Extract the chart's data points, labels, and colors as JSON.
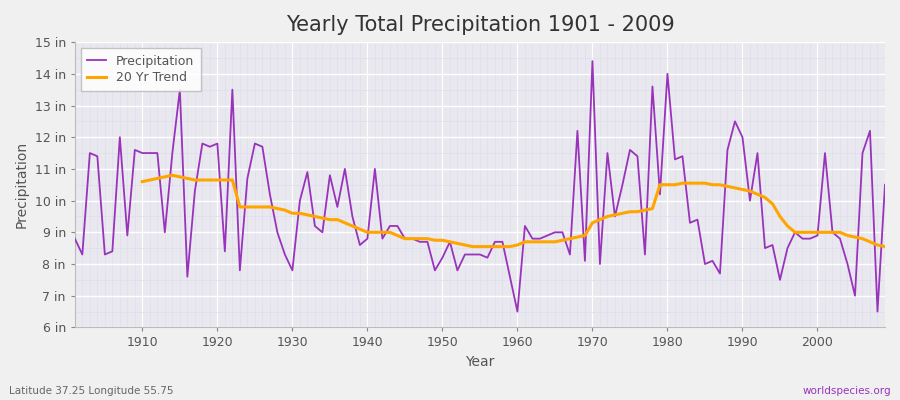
{
  "title": "Yearly Total Precipitation 1901 - 2009",
  "xlabel": "Year",
  "ylabel": "Precipitation",
  "footnote_left": "Latitude 37.25 Longitude 55.75",
  "footnote_right": "worldspecies.org",
  "years": [
    1901,
    1902,
    1903,
    1904,
    1905,
    1906,
    1907,
    1908,
    1909,
    1910,
    1911,
    1912,
    1913,
    1914,
    1915,
    1916,
    1917,
    1918,
    1919,
    1920,
    1921,
    1922,
    1923,
    1924,
    1925,
    1926,
    1927,
    1928,
    1929,
    1930,
    1931,
    1932,
    1933,
    1934,
    1935,
    1936,
    1937,
    1938,
    1939,
    1940,
    1941,
    1942,
    1943,
    1944,
    1945,
    1946,
    1947,
    1948,
    1949,
    1950,
    1951,
    1952,
    1953,
    1954,
    1955,
    1956,
    1957,
    1958,
    1959,
    1960,
    1961,
    1962,
    1963,
    1964,
    1965,
    1966,
    1967,
    1968,
    1969,
    1970,
    1971,
    1972,
    1973,
    1974,
    1975,
    1976,
    1977,
    1978,
    1979,
    1980,
    1981,
    1982,
    1983,
    1984,
    1985,
    1986,
    1987,
    1988,
    1989,
    1990,
    1991,
    1992,
    1993,
    1994,
    1995,
    1996,
    1997,
    1998,
    1999,
    2000,
    2001,
    2002,
    2003,
    2004,
    2005,
    2006,
    2007,
    2008,
    2009
  ],
  "precip_in": [
    8.8,
    8.3,
    11.5,
    11.4,
    8.3,
    8.4,
    12.0,
    8.9,
    11.6,
    11.5,
    11.5,
    11.5,
    9.0,
    11.5,
    13.5,
    7.6,
    10.3,
    11.8,
    11.7,
    11.8,
    8.4,
    13.5,
    7.8,
    10.7,
    11.8,
    11.7,
    10.2,
    9.0,
    8.3,
    7.8,
    10.0,
    10.9,
    9.2,
    9.0,
    10.8,
    9.8,
    11.0,
    9.5,
    8.6,
    8.8,
    11.0,
    8.8,
    9.2,
    9.2,
    8.8,
    8.8,
    8.7,
    8.7,
    7.8,
    8.2,
    8.7,
    7.8,
    8.3,
    8.3,
    8.3,
    8.2,
    8.7,
    8.7,
    7.6,
    6.5,
    9.2,
    8.8,
    8.8,
    8.9,
    9.0,
    9.0,
    8.3,
    12.2,
    8.1,
    14.4,
    8.0,
    11.5,
    9.5,
    10.5,
    11.6,
    11.4,
    8.3,
    13.6,
    10.2,
    14.0,
    11.3,
    11.4,
    9.3,
    9.4,
    8.0,
    8.1,
    7.7,
    11.6,
    12.5,
    12.0,
    10.0,
    11.5,
    8.5,
    8.6,
    7.5,
    8.5,
    9.0,
    8.8,
    8.8,
    8.9,
    11.5,
    9.0,
    8.8,
    8.0,
    7.0,
    11.5,
    12.2,
    6.5,
    10.5
  ],
  "trend_years": [
    1910,
    1911,
    1912,
    1913,
    1914,
    1915,
    1916,
    1917,
    1918,
    1919,
    1920,
    1921,
    1922,
    1923,
    1924,
    1925,
    1926,
    1927,
    1928,
    1929,
    1930,
    1931,
    1932,
    1933,
    1934,
    1935,
    1936,
    1937,
    1938,
    1939,
    1940,
    1941,
    1942,
    1943,
    1944,
    1945,
    1946,
    1947,
    1948,
    1949,
    1950,
    1951,
    1952,
    1953,
    1954,
    1955,
    1956,
    1957,
    1958,
    1959,
    1960,
    1961,
    1962,
    1963,
    1964,
    1965,
    1966,
    1967,
    1968,
    1969,
    1970,
    1971,
    1972,
    1973,
    1974,
    1975,
    1976,
    1977,
    1978,
    1979,
    1980,
    1981,
    1982,
    1983,
    1984,
    1985,
    1986,
    1987,
    1988,
    1989,
    1990,
    1991,
    1992,
    1993,
    1994,
    1995,
    1996,
    1997,
    1998,
    1999,
    2000,
    2001,
    2002,
    2003,
    2004,
    2005,
    2006,
    2007,
    2008,
    2009
  ],
  "trend_in": [
    10.6,
    10.65,
    10.7,
    10.75,
    10.8,
    10.75,
    10.7,
    10.65,
    10.65,
    10.65,
    10.65,
    10.65,
    10.65,
    9.8,
    9.8,
    9.8,
    9.8,
    9.8,
    9.75,
    9.7,
    9.6,
    9.6,
    9.55,
    9.5,
    9.45,
    9.4,
    9.4,
    9.3,
    9.2,
    9.1,
    9.0,
    9.0,
    9.0,
    9.0,
    8.9,
    8.8,
    8.8,
    8.8,
    8.8,
    8.75,
    8.75,
    8.7,
    8.65,
    8.6,
    8.55,
    8.55,
    8.55,
    8.55,
    8.55,
    8.55,
    8.6,
    8.7,
    8.7,
    8.7,
    8.7,
    8.7,
    8.75,
    8.8,
    8.85,
    8.9,
    9.3,
    9.4,
    9.5,
    9.55,
    9.6,
    9.65,
    9.65,
    9.7,
    9.75,
    10.5,
    10.5,
    10.5,
    10.55,
    10.55,
    10.55,
    10.55,
    10.5,
    10.5,
    10.45,
    10.4,
    10.35,
    10.3,
    10.2,
    10.1,
    9.9,
    9.5,
    9.2,
    9.0,
    9.0,
    9.0,
    9.0,
    9.0,
    9.0,
    9.0,
    8.9,
    8.85,
    8.8,
    8.7,
    8.6,
    8.55
  ],
  "precip_color": "#9933bb",
  "trend_color": "#ffa500",
  "fig_bg_color": "#f0f0f0",
  "plot_bg_color": "#e8e8ee",
  "grid_color_major": "#ffffff",
  "grid_color_minor": "#ddddee",
  "ylim": [
    6,
    15
  ],
  "xlim": [
    1901,
    2009
  ],
  "ytick_labels": [
    "6 in",
    "7 in",
    "8 in",
    "9 in",
    "10 in",
    "11 in",
    "12 in",
    "13 in",
    "14 in",
    "15 in"
  ],
  "ytick_values": [
    6,
    7,
    8,
    9,
    10,
    11,
    12,
    13,
    14,
    15
  ],
  "xtick_values": [
    1910,
    1920,
    1930,
    1940,
    1950,
    1960,
    1970,
    1980,
    1990,
    2000
  ],
  "title_fontsize": 15,
  "label_fontsize": 10,
  "tick_fontsize": 9,
  "legend_fontsize": 9,
  "precip_linewidth": 1.3,
  "trend_linewidth": 2.2
}
